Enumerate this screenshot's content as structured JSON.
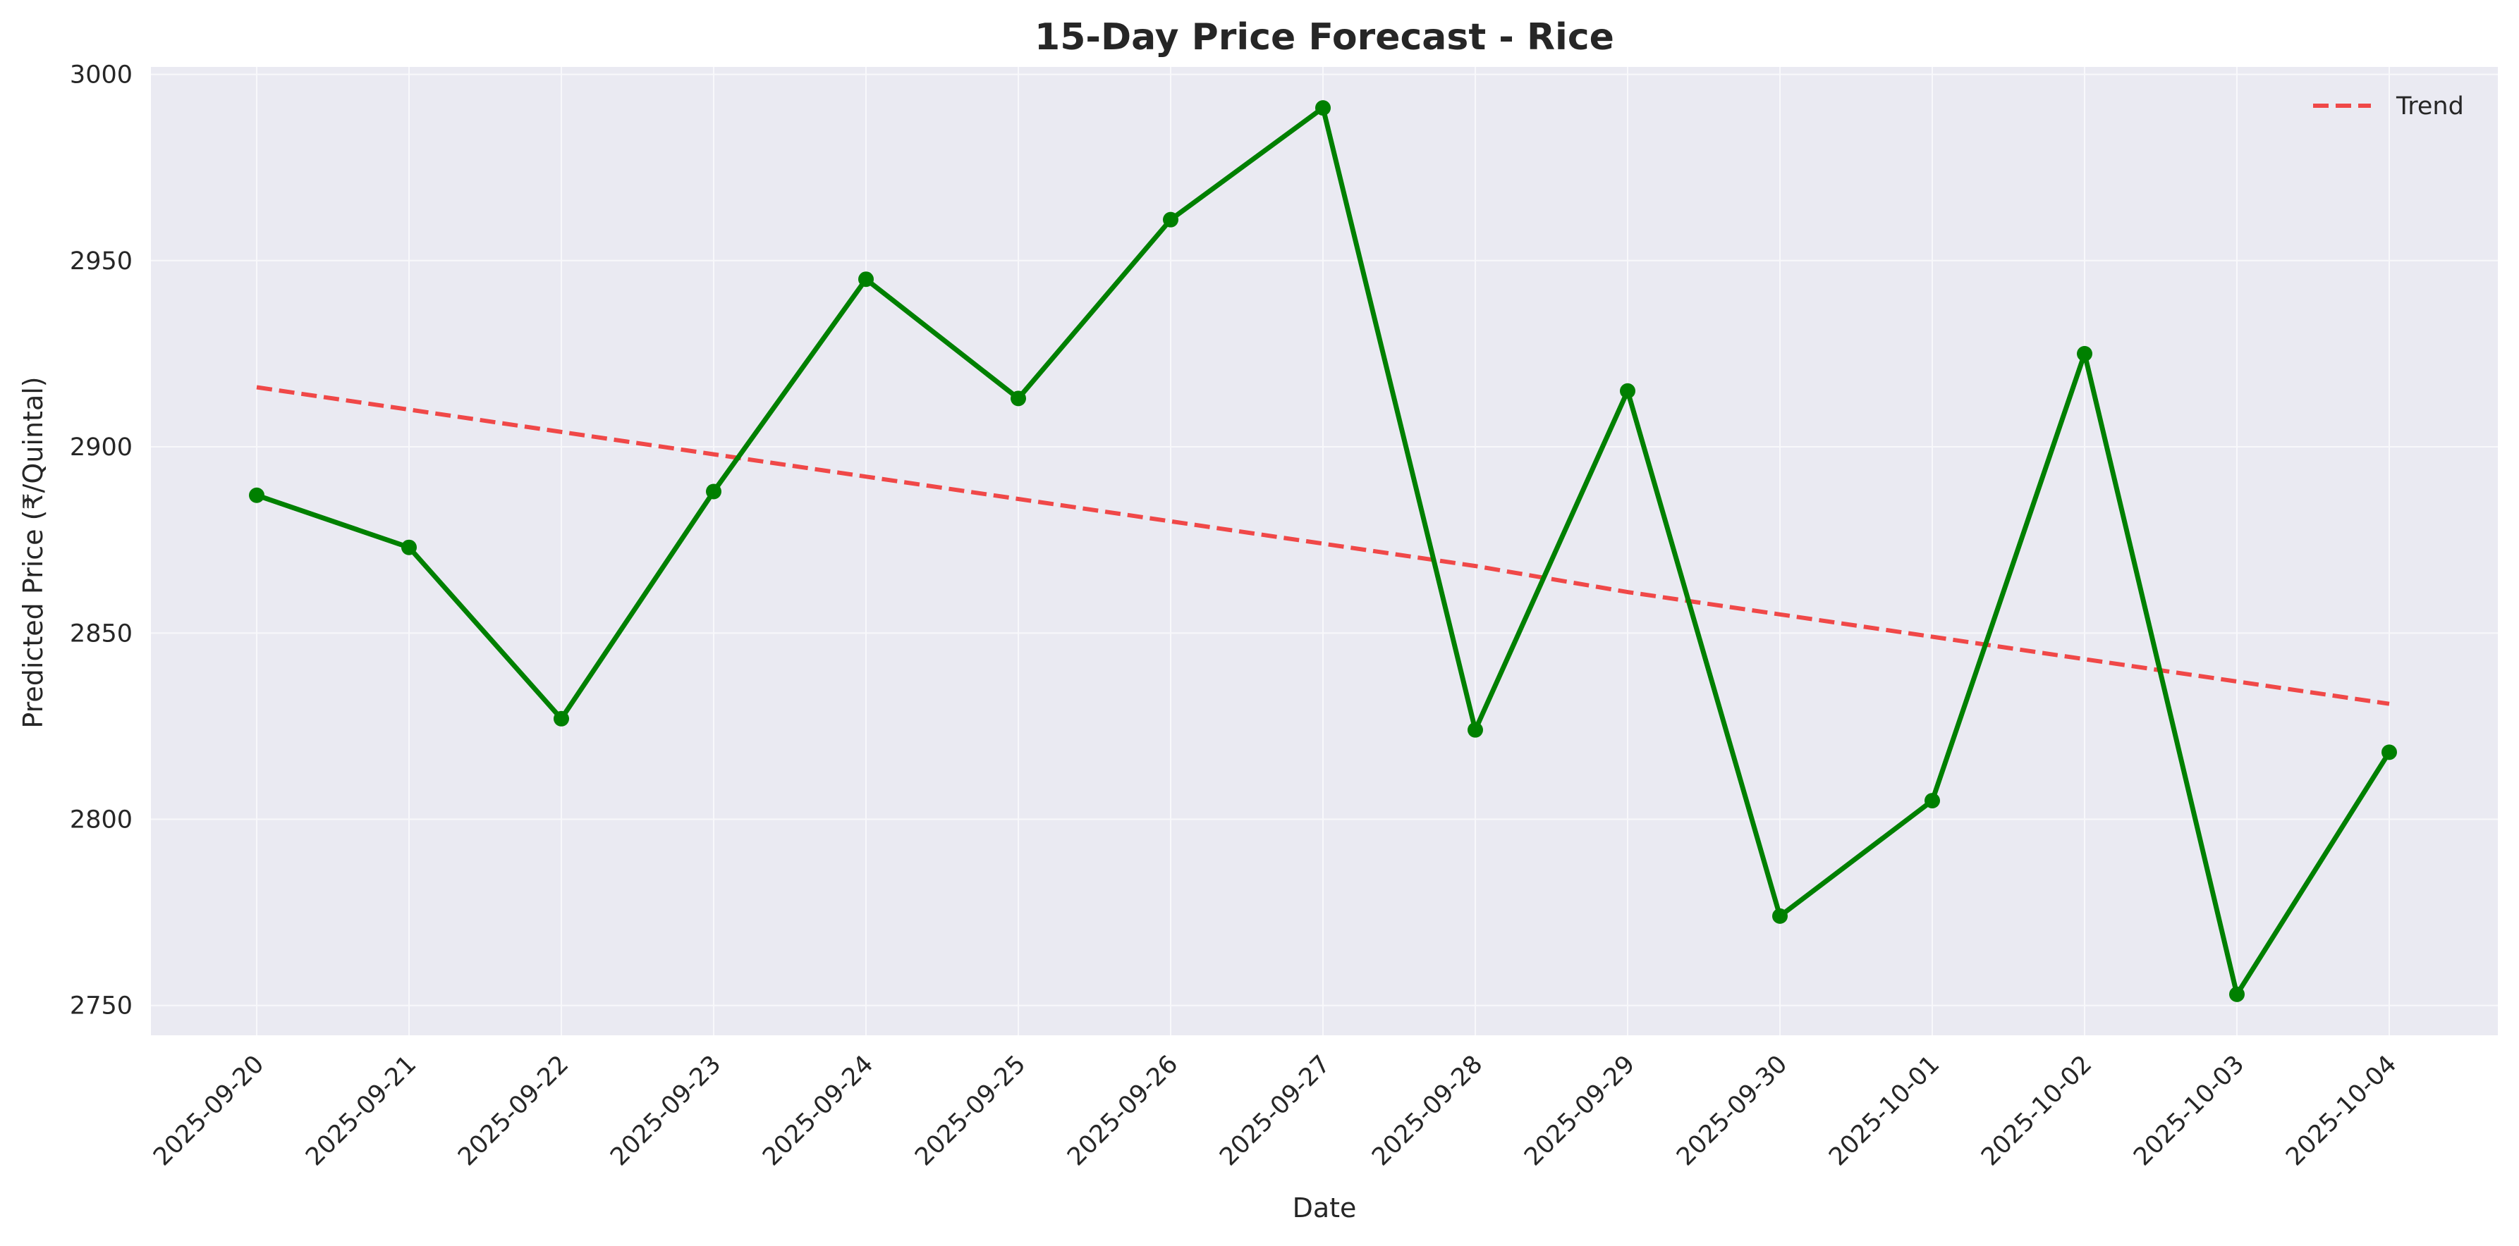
{
  "chart_data": {
    "type": "line",
    "title": "15-Day Price Forecast - Rice",
    "xlabel": "Date",
    "ylabel": "Predicted Price (₹/Quintal)",
    "x": [
      "2025-09-20",
      "2025-09-21",
      "2025-09-22",
      "2025-09-23",
      "2025-09-24",
      "2025-09-25",
      "2025-09-26",
      "2025-09-27",
      "2025-09-28",
      "2025-09-29",
      "2025-09-30",
      "2025-10-01",
      "2025-10-02",
      "2025-10-03",
      "2025-10-04"
    ],
    "ylim": [
      2742,
      3002
    ],
    "yticks": [
      2750,
      2800,
      2850,
      2900,
      2950,
      3000
    ],
    "grid": true,
    "legend_position": "top-right",
    "series": [
      {
        "values": [
          2887,
          2873,
          2827,
          2888,
          2945,
          2913,
          2961,
          2991,
          2824,
          2915,
          2774,
          2805,
          2925,
          2753,
          2818
        ],
        "color": "#008000",
        "style": "solid",
        "markers": true
      },
      {
        "name": "Trend",
        "values": [
          2916,
          2910,
          2904,
          2898,
          2892,
          2886,
          2880,
          2874,
          2868,
          2861,
          2855,
          2849,
          2843,
          2837,
          2831
        ],
        "color": "#f04848",
        "style": "dashed",
        "markers": false
      }
    ],
    "background_color": "#eaeaf2",
    "grid_color": "#f8f8fb"
  }
}
